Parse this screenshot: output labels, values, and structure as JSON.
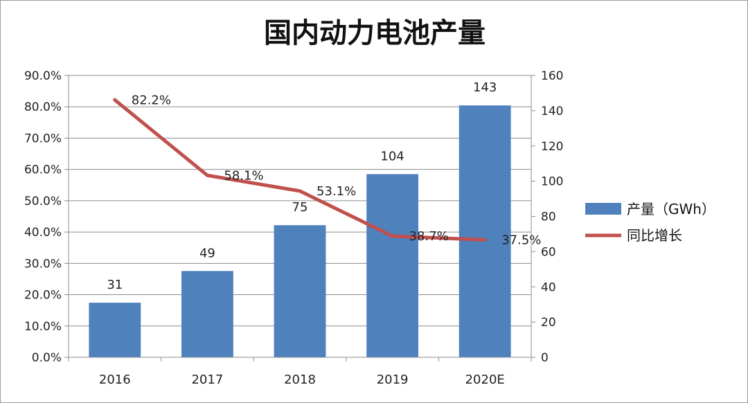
{
  "chart_data": {
    "type": "bar+line",
    "title": "国内动力电池产量",
    "categories": [
      "2016",
      "2017",
      "2018",
      "2019",
      "2020E"
    ],
    "series": [
      {
        "name": "产量（GWh）",
        "type": "bar",
        "axis": "right",
        "values": [
          31,
          49,
          75,
          104,
          143
        ],
        "color": "#4f81bd"
      },
      {
        "name": "同比增长",
        "type": "line",
        "axis": "left",
        "values": [
          82.2,
          58.1,
          53.1,
          38.7,
          37.5
        ],
        "labels": [
          "82.2%",
          "58.1%",
          "53.1%",
          "38.7%",
          "37.5%"
        ],
        "color": "#c0504d"
      }
    ],
    "y_left": {
      "ylim": [
        0,
        90
      ],
      "ticks": [
        "0.0%",
        "10.0%",
        "20.0%",
        "30.0%",
        "40.0%",
        "50.0%",
        "60.0%",
        "70.0%",
        "80.0%",
        "90.0%"
      ]
    },
    "y_right": {
      "ylim": [
        0,
        160
      ],
      "ticks": [
        "0",
        "20",
        "40",
        "60",
        "80",
        "100",
        "120",
        "140",
        "160"
      ]
    },
    "grid": true,
    "legend_position": "right"
  }
}
